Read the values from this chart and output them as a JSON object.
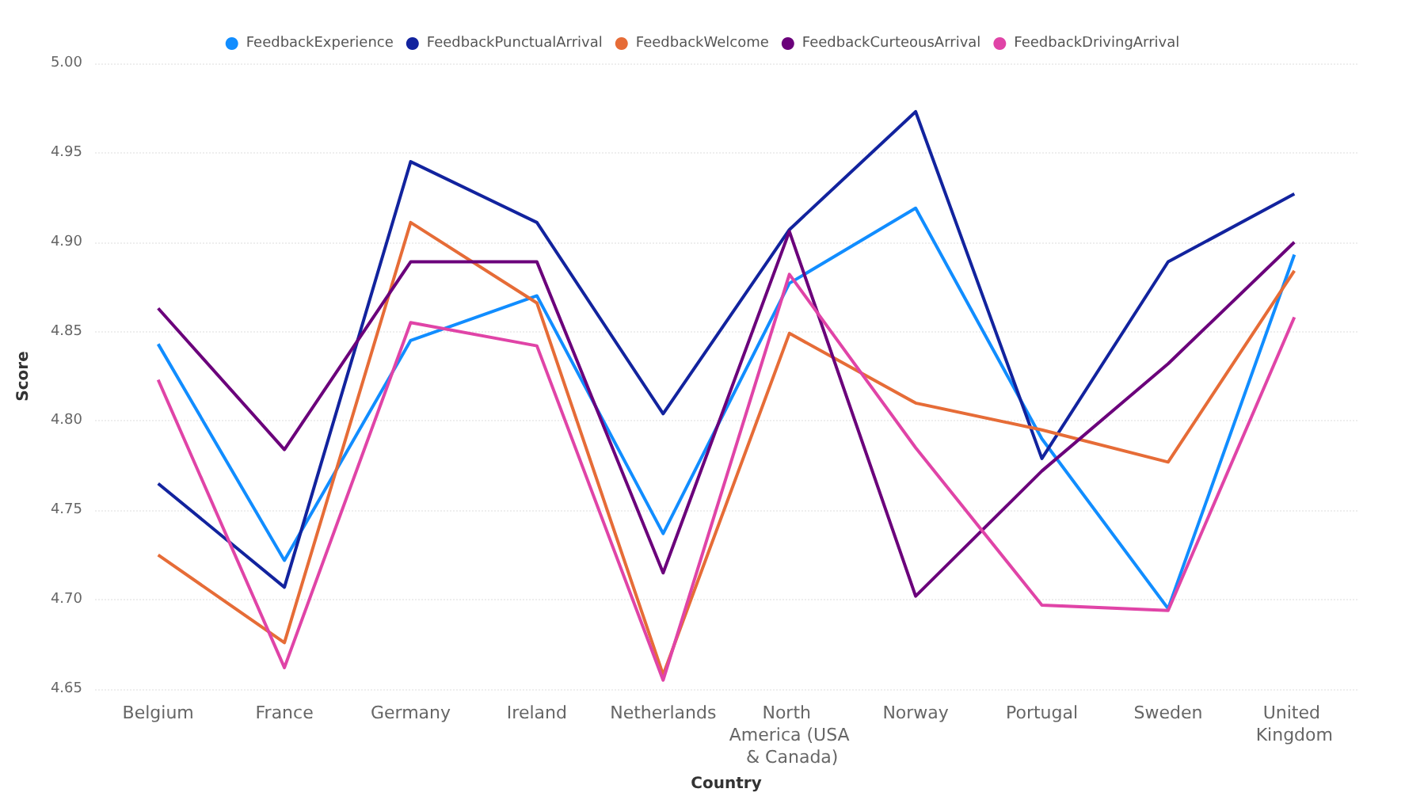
{
  "chart_data": {
    "type": "line",
    "xlabel": "Country",
    "ylabel": "Score",
    "categories": [
      "Belgium",
      "France",
      "Germany",
      "Ireland",
      "Netherlands",
      "North America (USA & Canada)",
      "Norway",
      "Portugal",
      "Sweden",
      "United Kingdom"
    ],
    "series": [
      {
        "name": "FeedbackExperience",
        "color": "#118dff",
        "values": [
          4.843,
          4.722,
          4.845,
          4.87,
          4.737,
          4.877,
          4.919,
          4.79,
          4.695,
          4.893
        ]
      },
      {
        "name": "FeedbackPunctualArrival",
        "color": "#12239e",
        "values": [
          4.765,
          4.707,
          4.945,
          4.911,
          4.804,
          4.907,
          4.973,
          4.779,
          4.889,
          4.927
        ]
      },
      {
        "name": "FeedbackWelcome",
        "color": "#e66c37",
        "values": [
          4.725,
          4.676,
          4.911,
          4.866,
          4.658,
          4.849,
          4.81,
          4.795,
          4.777,
          4.884
        ]
      },
      {
        "name": "FeedbackCurteousArrival",
        "color": "#6b007b",
        "values": [
          4.863,
          4.784,
          4.889,
          4.889,
          4.715,
          4.906,
          4.702,
          4.772,
          4.832,
          4.9
        ]
      },
      {
        "name": "FeedbackDrivingArrival",
        "color": "#e044a7",
        "values": [
          4.823,
          4.662,
          4.855,
          4.842,
          4.655,
          4.882,
          4.785,
          4.697,
          4.694,
          4.858
        ]
      }
    ],
    "ylim": [
      4.65,
      5.0
    ],
    "yticks": [
      {
        "value": 4.65,
        "label": "4.65"
      },
      {
        "value": 4.7,
        "label": "4.70"
      },
      {
        "value": 4.75,
        "label": "4.75"
      },
      {
        "value": 4.8,
        "label": "4.80"
      },
      {
        "value": 4.85,
        "label": "4.85"
      },
      {
        "value": 4.9,
        "label": "4.90"
      },
      {
        "value": 4.95,
        "label": "4.95"
      },
      {
        "value": 5.0,
        "label": "5.00"
      }
    ],
    "grid": "y",
    "legend": "top",
    "marker": "none",
    "line_style": "solid"
  }
}
